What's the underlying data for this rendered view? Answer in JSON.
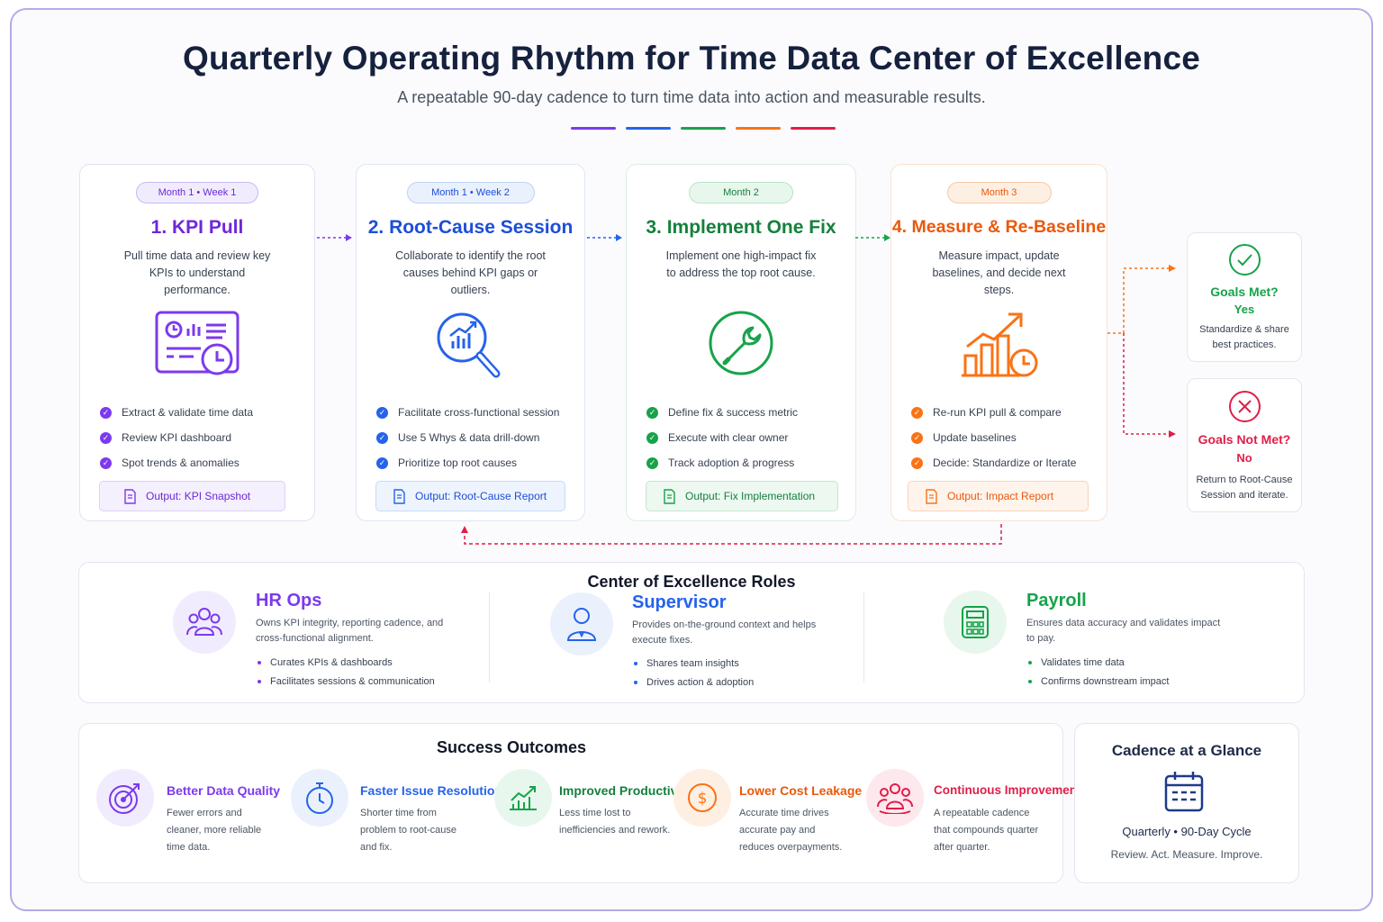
{
  "header": {
    "title": "Quarterly Operating Rhythm for Time Data Center of Excellence",
    "subtitle": "A repeatable 90-day cadence to turn time data into action and measurable results."
  },
  "colors": {
    "purple": "#7c3aed",
    "blue": "#2563eb",
    "green": "#16a34a",
    "orange": "#f97316",
    "pink": "#e11d48",
    "navy": "#16213e"
  },
  "steps": [
    {
      "timing": "Month 1 • Week 1",
      "title": "1. KPI Pull",
      "desc": "Pull time data and review key KPIs to understand performance.",
      "icon": "dashboard-icon",
      "bullets": [
        "Extract & validate time data",
        "Review KPI dashboard",
        "Spot trends & anomalies"
      ],
      "output": "Output: KPI Snapshot"
    },
    {
      "timing": "Month 1 • Week 2",
      "title": "2. Root-Cause Session",
      "desc": "Collaborate to identify the root causes behind KPI gaps or outliers.",
      "icon": "magnifier-chart-icon",
      "bullets": [
        "Facilitate cross-functional session",
        "Use 5 Whys & data drill-down",
        "Prioritize top root causes"
      ],
      "output": "Output: Root-Cause Report"
    },
    {
      "timing": "Month 2",
      "title": "3. Implement One Fix",
      "desc": "Implement one high-impact fix to address the top root cause.",
      "icon": "wrench-icon",
      "bullets": [
        "Define fix & success metric",
        "Execute with clear owner",
        "Track adoption & progress"
      ],
      "output": "Output: Fix Implementation"
    },
    {
      "timing": "Month 3",
      "title": "4. Measure & Re-Baseline",
      "desc": "Measure impact, update baselines, and decide next steps.",
      "icon": "growth-chart-icon",
      "bullets": [
        "Re-run KPI pull & compare",
        "Update baselines",
        "Decide: Standardize or Iterate"
      ],
      "output": "Output: Impact Report"
    }
  ],
  "decisions": [
    {
      "title": "Goals Met?",
      "answer": "Yes",
      "text": "Standardize & share best practices."
    },
    {
      "title": "Goals Not Met?",
      "answer": "No",
      "text": "Return to Root-Cause Session and iterate."
    }
  ],
  "roles": {
    "title": "Center of Excellence Roles",
    "items": [
      {
        "name": "HR Ops",
        "desc": "Owns KPI integrity, reporting cadence, and cross-functional alignment.",
        "bullets": [
          "Curates KPIs & dashboards",
          "Facilitates sessions & communication"
        ]
      },
      {
        "name": "Supervisor",
        "desc": "Provides on-the-ground context and helps execute fixes.",
        "bullets": [
          "Shares team insights",
          "Drives action & adoption"
        ]
      },
      {
        "name": "Payroll",
        "desc": "Ensures data accuracy and validates impact to pay.",
        "bullets": [
          "Validates time data",
          "Confirms downstream impact"
        ]
      }
    ]
  },
  "outcomes": {
    "title": "Success Outcomes",
    "items": [
      {
        "name": "Better Data Quality",
        "desc": "Fewer errors and cleaner, more reliable time data."
      },
      {
        "name": "Faster Issue Resolution",
        "desc": "Shorter time from problem to root-cause and fix."
      },
      {
        "name": "Improved Productivity",
        "desc": "Less time lost to inefficiencies and rework."
      },
      {
        "name": "Lower Cost Leakage",
        "desc": "Accurate time drives accurate pay and reduces overpayments."
      },
      {
        "name": "Continuous Improvement",
        "desc": "A repeatable cadence that compounds quarter after quarter."
      }
    ]
  },
  "glance": {
    "title": "Cadence at a Glance",
    "line1": "Quarterly • 90-Day Cycle",
    "line2": "Review. Act. Measure. Improve."
  }
}
